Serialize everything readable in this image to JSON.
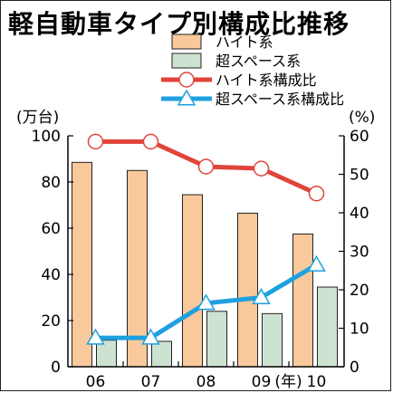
{
  "chart_data": {
    "type": "bar",
    "title": "軽自動車タイプ別構成比推移",
    "categories": [
      "06",
      "07",
      "08",
      "09",
      "10"
    ],
    "x_unit": "(年)",
    "y_left": {
      "unit": "(万台)",
      "ticks": [
        0,
        20,
        40,
        60,
        80,
        100
      ],
      "ylim": [
        0,
        100
      ]
    },
    "y_right": {
      "unit": "(%)",
      "ticks": [
        0,
        10,
        20,
        30,
        40,
        50,
        60
      ],
      "ylim": [
        0,
        60
      ]
    },
    "bar_series": [
      {
        "name": "ハイト系",
        "axis": "left",
        "color": "#f9c99b",
        "values": [
          88.5,
          85,
          74.5,
          66.5,
          57.5
        ]
      },
      {
        "name": "超スペース系",
        "axis": "left",
        "color": "#cde3d2",
        "values": [
          11.5,
          11,
          24,
          23,
          34.5
        ]
      }
    ],
    "line_series": [
      {
        "name": "ハイト系構成比",
        "axis": "right",
        "color": "#e0443a",
        "marker": "circle",
        "values": [
          58.5,
          58.5,
          52,
          51.5,
          45
        ]
      },
      {
        "name": "超スペース系構成比",
        "axis": "right",
        "color": "#1fa0e0",
        "marker": "triangle",
        "values": [
          7.5,
          7.5,
          16.5,
          18,
          26.5
        ]
      }
    ],
    "legend": [
      {
        "label": "ハイト系",
        "kind": "bar",
        "series": 0
      },
      {
        "label": "超スペース系",
        "kind": "bar",
        "series": 1
      },
      {
        "label": "ハイト系構成比",
        "kind": "line",
        "series": 0
      },
      {
        "label": "超スペース系構成比",
        "kind": "line",
        "series": 1
      }
    ],
    "legend_position": "top-right",
    "grid": false
  }
}
